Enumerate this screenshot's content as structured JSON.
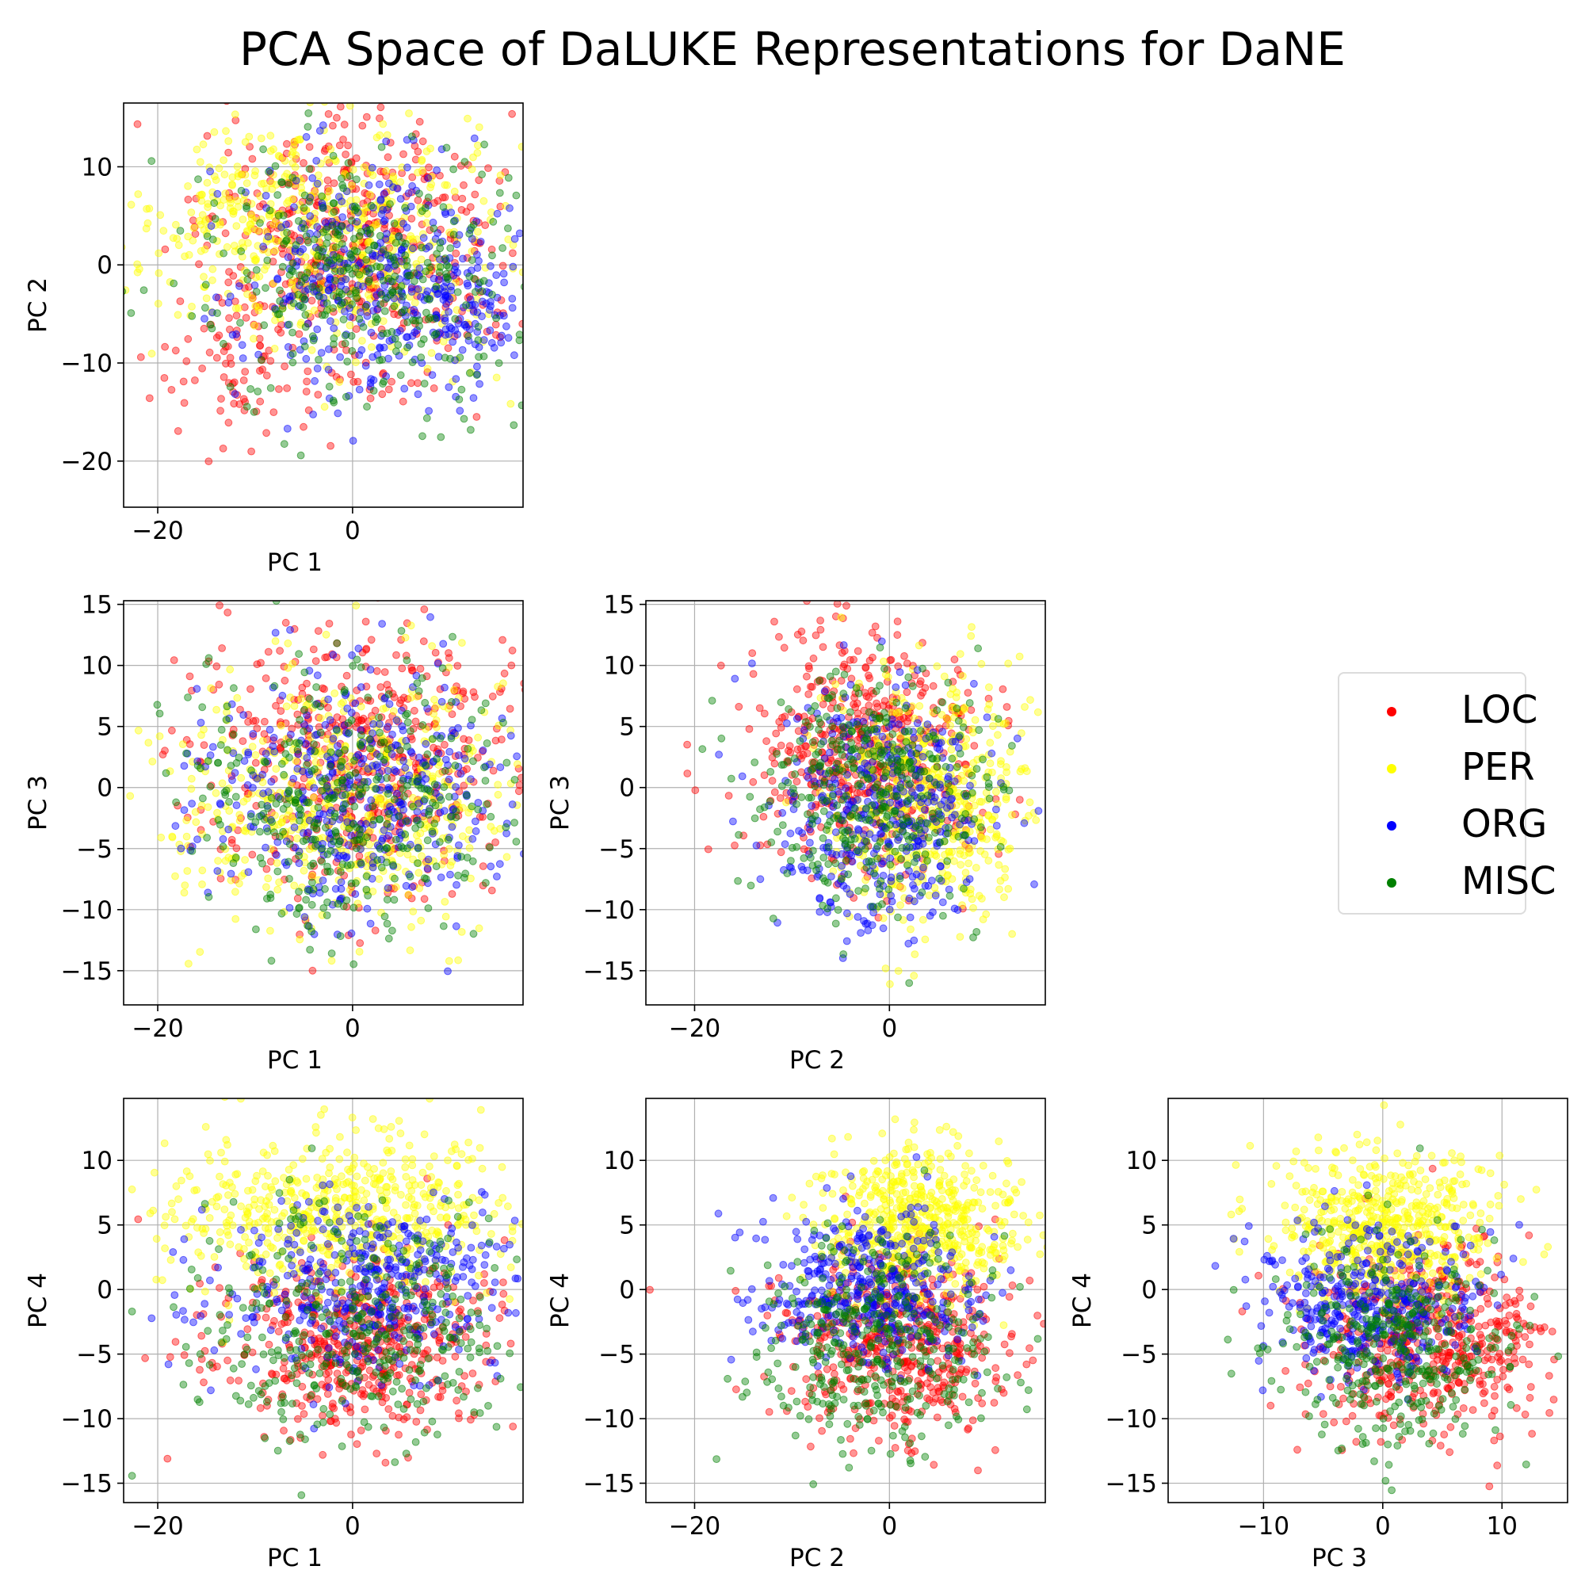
{
  "title": "PCA Space of DaLUKE Representations for DaNE",
  "colors": {
    "LOC": "#ff0000",
    "PER": "#ffff00",
    "ORG": "#0000ff",
    "MISC": "#008000"
  },
  "legend": {
    "placement": "center-right",
    "items": [
      {
        "label": "LOC",
        "color": "#ff0000"
      },
      {
        "label": "PER",
        "color": "#ffff00"
      },
      {
        "label": "ORG",
        "color": "#0000ff"
      },
      {
        "label": "MISC",
        "color": "#008000"
      }
    ]
  },
  "chart_data": [
    {
      "type": "scatter",
      "xlabel": "PC 1",
      "ylabel": "PC 2",
      "xlim": [
        -23.5,
        17.5
      ],
      "ylim": [
        -24.7,
        16.5
      ],
      "grid": true,
      "xticks": [
        -20,
        0
      ],
      "yticks": [
        -20,
        -10,
        0,
        10
      ],
      "series": [
        {
          "name": "LOC",
          "color": "#ff0000",
          "clusters": [
            {
              "cx": 0,
              "cy": 1,
              "sx": 7.5,
              "sy": 7,
              "n": 500
            },
            {
              "cx": -13,
              "cy": -11,
              "sx": 4,
              "sy": 4,
              "n": 60
            }
          ]
        },
        {
          "name": "PER",
          "color": "#ffff00",
          "clusters": [
            {
              "cx": -1,
              "cy": 3,
              "sx": 8.5,
              "sy": 6,
              "n": 450
            },
            {
              "cx": -12,
              "cy": 6,
              "sx": 5,
              "sy": 4,
              "n": 90
            }
          ]
        },
        {
          "name": "ORG",
          "color": "#0000ff",
          "clusters": [
            {
              "cx": 2,
              "cy": -1,
              "sx": 7,
              "sy": 6.5,
              "n": 360
            },
            {
              "cx": 12,
              "cy": -5,
              "sx": 3,
              "sy": 3,
              "n": 60
            }
          ]
        },
        {
          "name": "MISC",
          "color": "#008000",
          "clusters": [
            {
              "cx": 1,
              "cy": -1,
              "sx": 8,
              "sy": 6.5,
              "n": 360
            }
          ]
        }
      ]
    },
    {
      "type": "scatter",
      "xlabel": "PC 1",
      "ylabel": "PC 3",
      "xlim": [
        -23.5,
        17.5
      ],
      "ylim": [
        -17.8,
        15.3
      ],
      "grid": true,
      "xticks": [
        -20,
        0
      ],
      "yticks": [
        -15,
        -10,
        -5,
        0,
        5,
        10,
        15
      ],
      "series": [
        {
          "name": "LOC",
          "color": "#ff0000",
          "clusters": [
            {
              "cx": 1,
              "cy": 2,
              "sx": 8,
              "sy": 5.5,
              "n": 520
            }
          ]
        },
        {
          "name": "PER",
          "color": "#ffff00",
          "clusters": [
            {
              "cx": -1,
              "cy": -1,
              "sx": 9,
              "sy": 5,
              "n": 520
            }
          ]
        },
        {
          "name": "ORG",
          "color": "#0000ff",
          "clusters": [
            {
              "cx": 1,
              "cy": -1,
              "sx": 8,
              "sy": 5,
              "n": 400
            }
          ]
        },
        {
          "name": "MISC",
          "color": "#008000",
          "clusters": [
            {
              "cx": 0,
              "cy": -1,
              "sx": 8.5,
              "sy": 5.5,
              "n": 380
            }
          ]
        }
      ]
    },
    {
      "type": "scatter",
      "xlabel": "PC 2",
      "ylabel": "PC 3",
      "xlim": [
        -25,
        16
      ],
      "ylim": [
        -17.8,
        15.3
      ],
      "grid": true,
      "xticks": [
        -20,
        0
      ],
      "yticks": [
        -15,
        -10,
        -5,
        0,
        5,
        10,
        15
      ],
      "series": [
        {
          "name": "LOC",
          "color": "#ff0000",
          "clusters": [
            {
              "cx": -2,
              "cy": 3,
              "sx": 6,
              "sy": 5,
              "n": 520
            }
          ]
        },
        {
          "name": "PER",
          "color": "#ffff00",
          "clusters": [
            {
              "cx": 4,
              "cy": -1,
              "sx": 5,
              "sy": 5,
              "n": 520
            }
          ]
        },
        {
          "name": "ORG",
          "color": "#0000ff",
          "clusters": [
            {
              "cx": -1,
              "cy": -2,
              "sx": 5.5,
              "sy": 5,
              "n": 400
            }
          ]
        },
        {
          "name": "MISC",
          "color": "#008000",
          "clusters": [
            {
              "cx": -2,
              "cy": 0,
              "sx": 6,
              "sy": 5,
              "n": 380
            }
          ]
        }
      ]
    },
    {
      "type": "scatter",
      "xlabel": "PC 1",
      "ylabel": "PC 4",
      "xlim": [
        -23.5,
        17.5
      ],
      "ylim": [
        -16.5,
        14.8
      ],
      "grid": true,
      "xticks": [
        -20,
        0
      ],
      "yticks": [
        -15,
        -10,
        -5,
        0,
        5,
        10
      ],
      "series": [
        {
          "name": "LOC",
          "color": "#ff0000",
          "clusters": [
            {
              "cx": 1,
              "cy": -4,
              "sx": 7.5,
              "sy": 3.5,
              "n": 520
            }
          ]
        },
        {
          "name": "PER",
          "color": "#ffff00",
          "clusters": [
            {
              "cx": -3,
              "cy": 6,
              "sx": 9,
              "sy": 3,
              "n": 560
            }
          ]
        },
        {
          "name": "ORG",
          "color": "#0000ff",
          "clusters": [
            {
              "cx": 2,
              "cy": 0,
              "sx": 7.5,
              "sy": 3.5,
              "n": 400
            }
          ]
        },
        {
          "name": "MISC",
          "color": "#008000",
          "clusters": [
            {
              "cx": 0,
              "cy": -3,
              "sx": 8,
              "sy": 4.5,
              "n": 380
            }
          ]
        }
      ]
    },
    {
      "type": "scatter",
      "xlabel": "PC 2",
      "ylabel": "PC 4",
      "xlim": [
        -25,
        16
      ],
      "ylim": [
        -16.5,
        14.8
      ],
      "grid": true,
      "xticks": [
        -20,
        0
      ],
      "yticks": [
        -15,
        -10,
        -5,
        0,
        5,
        10
      ],
      "series": [
        {
          "name": "LOC",
          "color": "#ff0000",
          "clusters": [
            {
              "cx": 1,
              "cy": -4,
              "sx": 6,
              "sy": 3.5,
              "n": 520
            }
          ]
        },
        {
          "name": "PER",
          "color": "#ffff00",
          "clusters": [
            {
              "cx": 3,
              "cy": 5,
              "sx": 5,
              "sy": 3,
              "n": 560
            }
          ]
        },
        {
          "name": "ORG",
          "color": "#0000ff",
          "clusters": [
            {
              "cx": -2,
              "cy": 0,
              "sx": 5.5,
              "sy": 3,
              "n": 400
            }
          ]
        },
        {
          "name": "MISC",
          "color": "#008000",
          "clusters": [
            {
              "cx": -2,
              "cy": -4,
              "sx": 6.5,
              "sy": 4,
              "n": 380
            }
          ]
        }
      ]
    },
    {
      "type": "scatter",
      "xlabel": "PC 3",
      "ylabel": "PC 4",
      "xlim": [
        -18,
        15.5
      ],
      "ylim": [
        -16.5,
        14.8
      ],
      "grid": true,
      "xticks": [
        -10,
        0,
        10
      ],
      "yticks": [
        -15,
        -10,
        -5,
        0,
        5,
        10
      ],
      "series": [
        {
          "name": "LOC",
          "color": "#ff0000",
          "clusters": [
            {
              "cx": 4,
              "cy": -4,
              "sx": 5,
              "sy": 3.5,
              "n": 520
            }
          ]
        },
        {
          "name": "PER",
          "color": "#ffff00",
          "clusters": [
            {
              "cx": 0,
              "cy": 5,
              "sx": 4.5,
              "sy": 3,
              "n": 560
            }
          ]
        },
        {
          "name": "ORG",
          "color": "#0000ff",
          "clusters": [
            {
              "cx": -1,
              "cy": -1,
              "sx": 4.5,
              "sy": 3,
              "n": 400
            }
          ]
        },
        {
          "name": "MISC",
          "color": "#008000",
          "clusters": [
            {
              "cx": 1,
              "cy": -4,
              "sx": 5,
              "sy": 4,
              "n": 380
            }
          ]
        }
      ]
    }
  ]
}
